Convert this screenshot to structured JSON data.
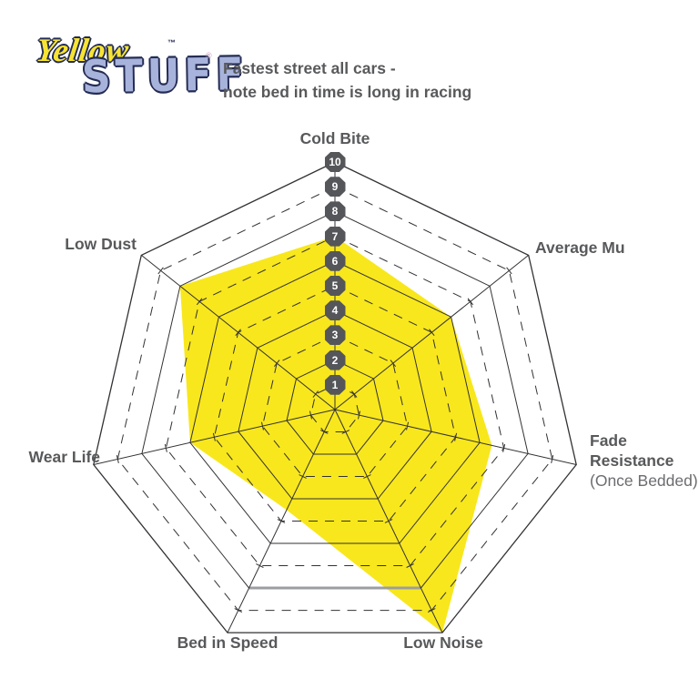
{
  "logo": {
    "word1": "Yellow",
    "tm": "™",
    "word2": "STUFF",
    "reg": "®"
  },
  "title": {
    "line1": "Fastest street all cars -",
    "line2": "note bed in time is long in racing"
  },
  "labels": {
    "cold_bite": "Cold Bite",
    "average_mu": "Average Mu",
    "fade_line1": "Fade",
    "fade_line2": "Resistance",
    "fade_line3": "(Once Bedded)",
    "low_noise": "Low Noise",
    "bed_in_speed": "Bed in Speed",
    "wear_life": "Wear Life",
    "low_dust": "Low Dust"
  },
  "chart_data": {
    "type": "radar",
    "title": "Fastest street all cars - note bed in time is long in racing",
    "categories": [
      "Cold Bite",
      "Average Mu",
      "Fade Resistance (Once Bedded)",
      "Low Noise",
      "Bed in Speed",
      "Wear Life",
      "Low Dust"
    ],
    "series": [
      {
        "name": "Yellowstuff",
        "values": [
          7,
          6,
          6.5,
          10,
          4.5,
          6,
          8
        ]
      }
    ],
    "scale_min": 0,
    "scale_max": 10,
    "ring_labels": [
      "1",
      "2",
      "3",
      "4",
      "5",
      "6",
      "7",
      "8",
      "9",
      "10"
    ],
    "grid": {
      "solid_rings": [
        2,
        4,
        6,
        8,
        10
      ],
      "dashed_rings": [
        1,
        3,
        5,
        7,
        9
      ]
    },
    "legend": "none"
  },
  "colors": {
    "fill": "#F8E71C",
    "grid": "#323135",
    "label": "#58595B",
    "badge_bg": "#55565A",
    "badge_text": "#FFFFFF",
    "gray_segment": "#9B9DA0",
    "logo_yellow": "#F7E432",
    "logo_blue": "#A8B3DC"
  }
}
